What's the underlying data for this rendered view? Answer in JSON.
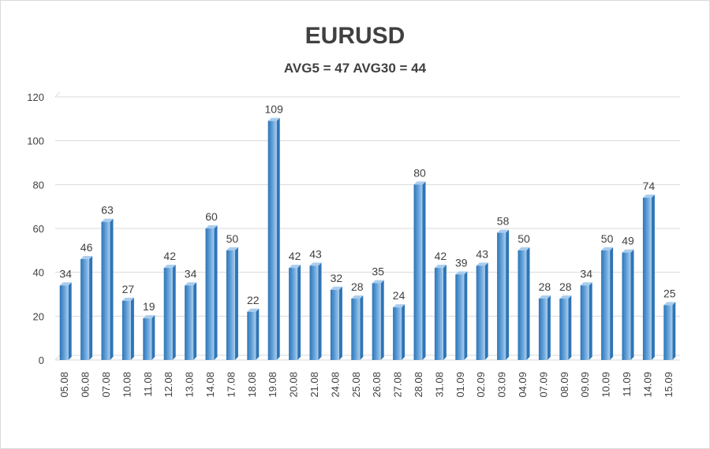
{
  "chart_data": {
    "type": "bar",
    "title": "EURUSD",
    "subtitle": "AVG5 = 47 AVG30 = 44",
    "xlabel": "",
    "ylabel": "",
    "ylim": [
      0,
      120
    ],
    "yticks": [
      0,
      20,
      40,
      60,
      80,
      100,
      120
    ],
    "grid": true,
    "legend": "none",
    "bar_color": "#5b9bd5",
    "bar_color_light": "#a9cdee",
    "bar_color_dark": "#2e75b6",
    "categories": [
      "05.08",
      "06.08",
      "07.08",
      "10.08",
      "11.08",
      "12.08",
      "13.08",
      "14.08",
      "17.08",
      "18.08",
      "19.08",
      "20.08",
      "21.08",
      "24.08",
      "25.08",
      "26.08",
      "27.08",
      "28.08",
      "31.08",
      "01.09",
      "02.09",
      "03.09",
      "04.09",
      "07.09",
      "08.09",
      "09.09",
      "10.09",
      "11.09",
      "14.09",
      "15.09"
    ],
    "values": [
      34,
      46,
      63,
      27,
      19,
      42,
      34,
      60,
      50,
      22,
      109,
      42,
      43,
      32,
      28,
      35,
      24,
      80,
      42,
      39,
      43,
      58,
      50,
      28,
      28,
      34,
      50,
      49,
      74,
      25
    ]
  }
}
